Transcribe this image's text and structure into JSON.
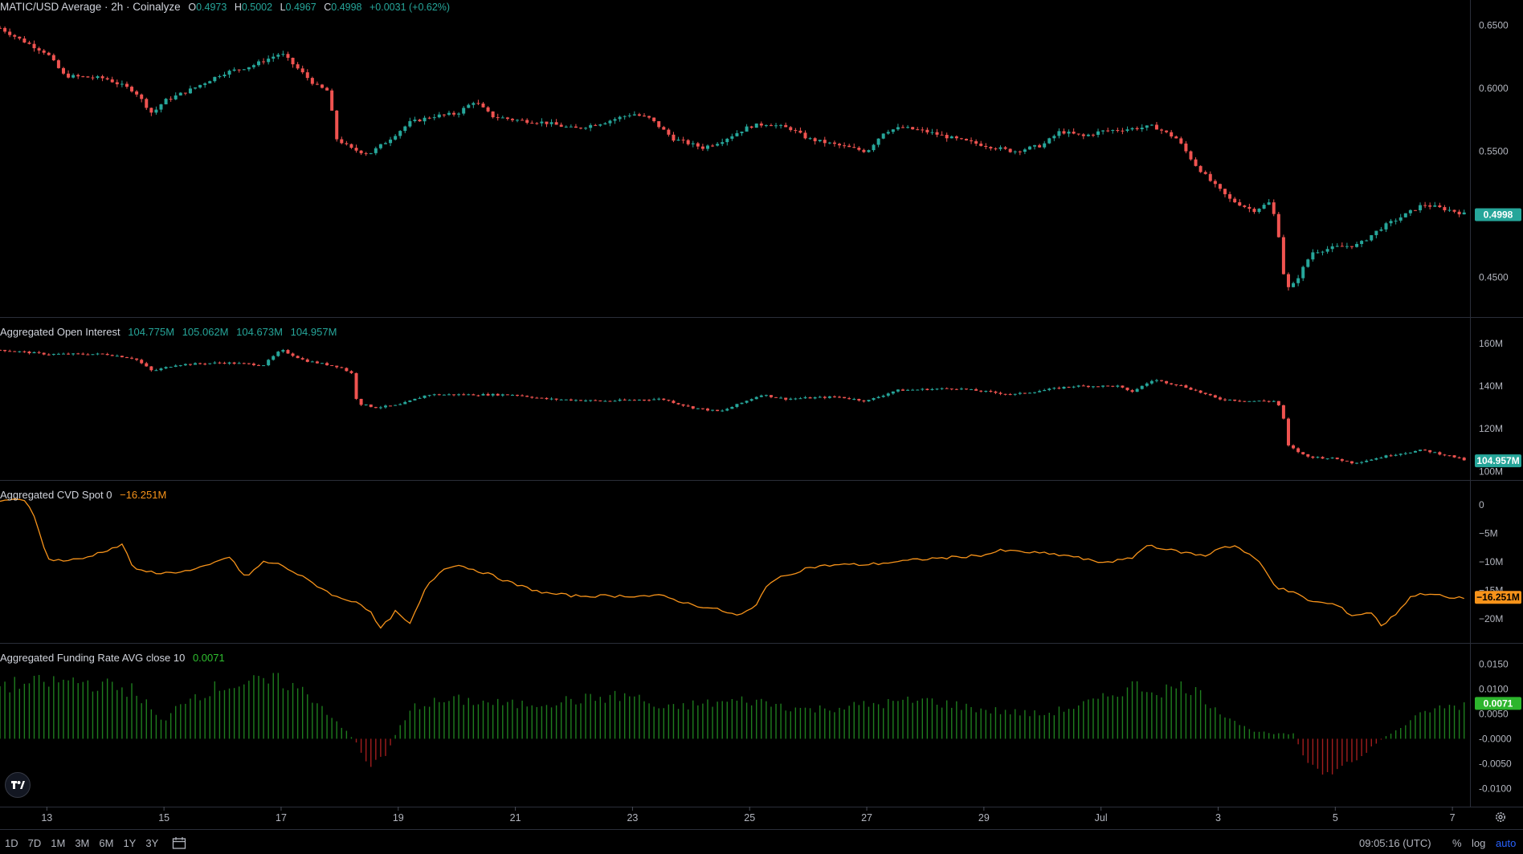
{
  "colors": {
    "up": "#26a69a",
    "down": "#ef5350",
    "cvd_line": "#f7931a",
    "funding_pos": "#1e7d1e",
    "funding_neg": "#a11d1d",
    "axis_text": "#b2b5be",
    "separator": "#2a2e39",
    "accent_blue": "#2962ff"
  },
  "panes": {
    "price": {
      "title": "MATIC/USD Average · 2h · Coinalyze",
      "ohlc": {
        "o_label": "O",
        "o": "0.4973",
        "h_label": "H",
        "h": "0.5002",
        "l_label": "L",
        "l": "0.4967",
        "c_label": "C",
        "c": "0.4998",
        "change": "+0.0031 (+0.62%)"
      },
      "last_value_label": "0.4998"
    },
    "oi": {
      "title": "Aggregated Open Interest",
      "values": [
        "104.775M",
        "105.062M",
        "104.673M",
        "104.957M"
      ],
      "last_value_label": "104.957M"
    },
    "cvd": {
      "title": "Aggregated CVD Spot 0",
      "value": "−16.251M",
      "last_value_label": "−16.251M"
    },
    "funding": {
      "title": "Aggregated Funding Rate AVG close 10",
      "value": "0.0071",
      "last_value_label": "0.0071"
    }
  },
  "bottom_bar": {
    "ranges": [
      "1D",
      "7D",
      "1M",
      "3M",
      "6M",
      "1Y",
      "3Y"
    ],
    "clock": "09:05:16 (UTC)",
    "percent": "%",
    "log": "log",
    "auto": "auto"
  },
  "icons": [
    "tradingview-logo-icon",
    "calendar-icon",
    "gear-icon"
  ],
  "chart_data": [
    {
      "type": "candlestick",
      "title": "MATIC/USD Average · 2h · Coinalyze",
      "x_ticks": [
        "13",
        "15",
        "17",
        "19",
        "21",
        "23",
        "25",
        "27",
        "29",
        "Jul",
        "3",
        "5",
        "7"
      ],
      "y_ticks": [
        "0.6500",
        "0.6000",
        "0.5500",
        "0.4500"
      ],
      "ylim": [
        0.425,
        0.66
      ],
      "x_range_days": [
        12.2,
        37.3
      ],
      "bar_interval_hours": 2,
      "close_keypoints": [
        [
          12.2,
          0.648
        ],
        [
          12.5,
          0.64
        ],
        [
          13.0,
          0.628
        ],
        [
          13.3,
          0.61
        ],
        [
          14.0,
          0.608
        ],
        [
          14.5,
          0.598
        ],
        [
          14.8,
          0.58
        ],
        [
          15.0,
          0.59
        ],
        [
          15.5,
          0.6
        ],
        [
          16.0,
          0.612
        ],
        [
          16.5,
          0.618
        ],
        [
          17.0,
          0.628
        ],
        [
          17.3,
          0.615
        ],
        [
          17.6,
          0.602
        ],
        [
          17.8,
          0.598
        ],
        [
          17.95,
          0.56
        ],
        [
          18.2,
          0.552
        ],
        [
          18.5,
          0.548
        ],
        [
          18.8,
          0.558
        ],
        [
          19.2,
          0.573
        ],
        [
          19.6,
          0.578
        ],
        [
          20.0,
          0.58
        ],
        [
          20.3,
          0.59
        ],
        [
          20.6,
          0.578
        ],
        [
          21.0,
          0.575
        ],
        [
          21.5,
          0.573
        ],
        [
          22.0,
          0.568
        ],
        [
          22.5,
          0.573
        ],
        [
          23.0,
          0.58
        ],
        [
          23.3,
          0.576
        ],
        [
          23.7,
          0.56
        ],
        [
          24.2,
          0.553
        ],
        [
          24.5,
          0.558
        ],
        [
          25.0,
          0.57
        ],
        [
          25.3,
          0.572
        ],
        [
          25.7,
          0.568
        ],
        [
          26.0,
          0.56
        ],
        [
          26.5,
          0.555
        ],
        [
          27.0,
          0.55
        ],
        [
          27.3,
          0.566
        ],
        [
          27.6,
          0.569
        ],
        [
          28.0,
          0.566
        ],
        [
          28.5,
          0.56
        ],
        [
          29.0,
          0.555
        ],
        [
          29.5,
          0.55
        ],
        [
          30.0,
          0.555
        ],
        [
          30.3,
          0.566
        ],
        [
          30.7,
          0.562
        ],
        [
          31.0,
          0.566
        ],
        [
          31.5,
          0.568
        ],
        [
          31.9,
          0.57
        ],
        [
          32.3,
          0.56
        ],
        [
          32.6,
          0.54
        ],
        [
          32.9,
          0.525
        ],
        [
          33.2,
          0.512
        ],
        [
          33.6,
          0.503
        ],
        [
          33.9,
          0.51
        ],
        [
          34.05,
          0.48
        ],
        [
          34.15,
          0.44
        ],
        [
          34.3,
          0.445
        ],
        [
          34.6,
          0.47
        ],
        [
          35.0,
          0.474
        ],
        [
          35.4,
          0.476
        ],
        [
          35.8,
          0.49
        ],
        [
          36.2,
          0.5
        ],
        [
          36.5,
          0.508
        ],
        [
          37.0,
          0.503
        ],
        [
          37.25,
          0.4998
        ]
      ]
    },
    {
      "type": "candlestick",
      "title": "Aggregated Open Interest",
      "y_ticks": [
        "160M",
        "140M",
        "120M",
        "100M"
      ],
      "ylim": [
        99,
        166
      ],
      "close_keypoints": [
        [
          12.2,
          157
        ],
        [
          13.0,
          155
        ],
        [
          14.0,
          155
        ],
        [
          14.5,
          153
        ],
        [
          14.8,
          147
        ],
        [
          15.2,
          150
        ],
        [
          16.0,
          151
        ],
        [
          16.7,
          150
        ],
        [
          17.0,
          157
        ],
        [
          17.4,
          152
        ],
        [
          18.0,
          149
        ],
        [
          18.2,
          146
        ],
        [
          18.3,
          132
        ],
        [
          18.6,
          130
        ],
        [
          19.0,
          131
        ],
        [
          19.5,
          136
        ],
        [
          20.0,
          136
        ],
        [
          21.0,
          136
        ],
        [
          21.5,
          134
        ],
        [
          22.5,
          133
        ],
        [
          23.5,
          134
        ],
        [
          24.0,
          130
        ],
        [
          24.5,
          128
        ],
        [
          25.2,
          136
        ],
        [
          25.6,
          134
        ],
        [
          26.5,
          135
        ],
        [
          27.0,
          133
        ],
        [
          27.5,
          138
        ],
        [
          28.5,
          139
        ],
        [
          29.5,
          136
        ],
        [
          30.5,
          140
        ],
        [
          31.3,
          140
        ],
        [
          31.5,
          137
        ],
        [
          31.9,
          143
        ],
        [
          32.4,
          140
        ],
        [
          33.0,
          134
        ],
        [
          33.5,
          133
        ],
        [
          34.0,
          133
        ],
        [
          34.1,
          127
        ],
        [
          34.2,
          112
        ],
        [
          34.5,
          107
        ],
        [
          35.0,
          106
        ],
        [
          35.3,
          104
        ],
        [
          35.5,
          105
        ],
        [
          36.0,
          108
        ],
        [
          36.5,
          110
        ],
        [
          37.0,
          107
        ],
        [
          37.25,
          104.957
        ]
      ]
    },
    {
      "type": "line",
      "title": "Aggregated CVD Spot 0",
      "series_label": "−16.251M",
      "y_ticks": [
        "0",
        "−5M",
        "−10M",
        "−15M",
        "−20M"
      ],
      "ylim": [
        -23,
        2
      ],
      "points": [
        [
          12.2,
          0.5
        ],
        [
          12.6,
          1.2
        ],
        [
          12.8,
          -2
        ],
        [
          13.0,
          -9.5
        ],
        [
          13.3,
          -9.8
        ],
        [
          13.6,
          -9.5
        ],
        [
          14.0,
          -8.0
        ],
        [
          14.3,
          -7.0
        ],
        [
          14.5,
          -11.5
        ],
        [
          15.0,
          -12.0
        ],
        [
          15.5,
          -11.5
        ],
        [
          15.8,
          -10.5
        ],
        [
          16.1,
          -9.0
        ],
        [
          16.4,
          -12.8
        ],
        [
          16.7,
          -10.0
        ],
        [
          17.0,
          -10.5
        ],
        [
          17.5,
          -13.5
        ],
        [
          18.0,
          -16.5
        ],
        [
          18.3,
          -17.0
        ],
        [
          18.5,
          -18.5
        ],
        [
          18.7,
          -21.8
        ],
        [
          18.95,
          -18.8
        ],
        [
          19.2,
          -21.0
        ],
        [
          19.5,
          -14.0
        ],
        [
          19.8,
          -11.0
        ],
        [
          20.0,
          -10.5
        ],
        [
          20.5,
          -12.0
        ],
        [
          21.0,
          -14.0
        ],
        [
          21.5,
          -15.5
        ],
        [
          22.0,
          -16.0
        ],
        [
          22.5,
          -16.0
        ],
        [
          23.0,
          -16.0
        ],
        [
          23.5,
          -16.0
        ],
        [
          24.0,
          -17.5
        ],
        [
          24.5,
          -18.5
        ],
        [
          24.8,
          -19.5
        ],
        [
          25.1,
          -18.0
        ],
        [
          25.3,
          -13.8
        ],
        [
          25.6,
          -12.5
        ],
        [
          26.0,
          -11.0
        ],
        [
          26.5,
          -10.5
        ],
        [
          27.0,
          -10.5
        ],
        [
          27.5,
          -10.0
        ],
        [
          28.0,
          -9.5
        ],
        [
          28.5,
          -9.2
        ],
        [
          29.0,
          -8.8
        ],
        [
          29.3,
          -8.0
        ],
        [
          30.0,
          -8.5
        ],
        [
          30.5,
          -9.0
        ],
        [
          30.9,
          -10.0
        ],
        [
          31.1,
          -10.0
        ],
        [
          31.5,
          -9.5
        ],
        [
          31.8,
          -7.0
        ],
        [
          32.2,
          -8.0
        ],
        [
          32.5,
          -8.5
        ],
        [
          32.8,
          -9.0
        ],
        [
          33.0,
          -7.5
        ],
        [
          33.3,
          -7.2
        ],
        [
          33.7,
          -10.0
        ],
        [
          34.0,
          -14.5
        ],
        [
          34.3,
          -15.5
        ],
        [
          34.6,
          -17.0
        ],
        [
          35.0,
          -17.5
        ],
        [
          35.3,
          -19.5
        ],
        [
          35.6,
          -18.8
        ],
        [
          35.8,
          -21.3
        ],
        [
          36.0,
          -19.5
        ],
        [
          36.3,
          -16.0
        ],
        [
          36.6,
          -15.5
        ],
        [
          37.0,
          -16.5
        ],
        [
          37.25,
          -16.251
        ]
      ]
    },
    {
      "type": "bar",
      "title": "Aggregated Funding Rate AVG close 10",
      "series_label": "0.0071",
      "y_ticks": [
        "0.0150",
        "0.0100",
        "0.0050",
        "-0.0000",
        "-0.0050",
        "-0.0100"
      ],
      "ylim": [
        -0.0125,
        0.0165
      ],
      "keypoints": [
        [
          12.2,
          0.011
        ],
        [
          13.5,
          0.012
        ],
        [
          14.5,
          0.01
        ],
        [
          15.0,
          0.003
        ],
        [
          15.3,
          0.008
        ],
        [
          16.0,
          0.011
        ],
        [
          17.0,
          0.012
        ],
        [
          17.5,
          0.009
        ],
        [
          18.0,
          0.003
        ],
        [
          18.3,
          -0.001
        ],
        [
          18.5,
          -0.006
        ],
        [
          18.8,
          -0.003
        ],
        [
          19.0,
          0.002
        ],
        [
          19.3,
          0.007
        ],
        [
          20.0,
          0.008
        ],
        [
          21.0,
          0.007
        ],
        [
          22.0,
          0.008
        ],
        [
          23.0,
          0.009
        ],
        [
          23.5,
          0.006
        ],
        [
          24.0,
          0.007
        ],
        [
          25.0,
          0.008
        ],
        [
          26.0,
          0.006
        ],
        [
          27.0,
          0.007
        ],
        [
          28.0,
          0.008
        ],
        [
          29.0,
          0.006
        ],
        [
          30.0,
          0.005
        ],
        [
          31.0,
          0.008
        ],
        [
          31.5,
          0.011
        ],
        [
          32.0,
          0.01
        ],
        [
          32.5,
          0.011
        ],
        [
          33.0,
          0.006
        ],
        [
          33.5,
          0.002
        ],
        [
          33.9,
          0.001
        ],
        [
          34.3,
          0.001
        ],
        [
          34.5,
          -0.005
        ],
        [
          34.9,
          -0.008
        ],
        [
          35.4,
          -0.004
        ],
        [
          35.8,
          0.0
        ],
        [
          36.2,
          0.003
        ],
        [
          36.6,
          0.006
        ],
        [
          37.25,
          0.0071
        ]
      ]
    }
  ]
}
